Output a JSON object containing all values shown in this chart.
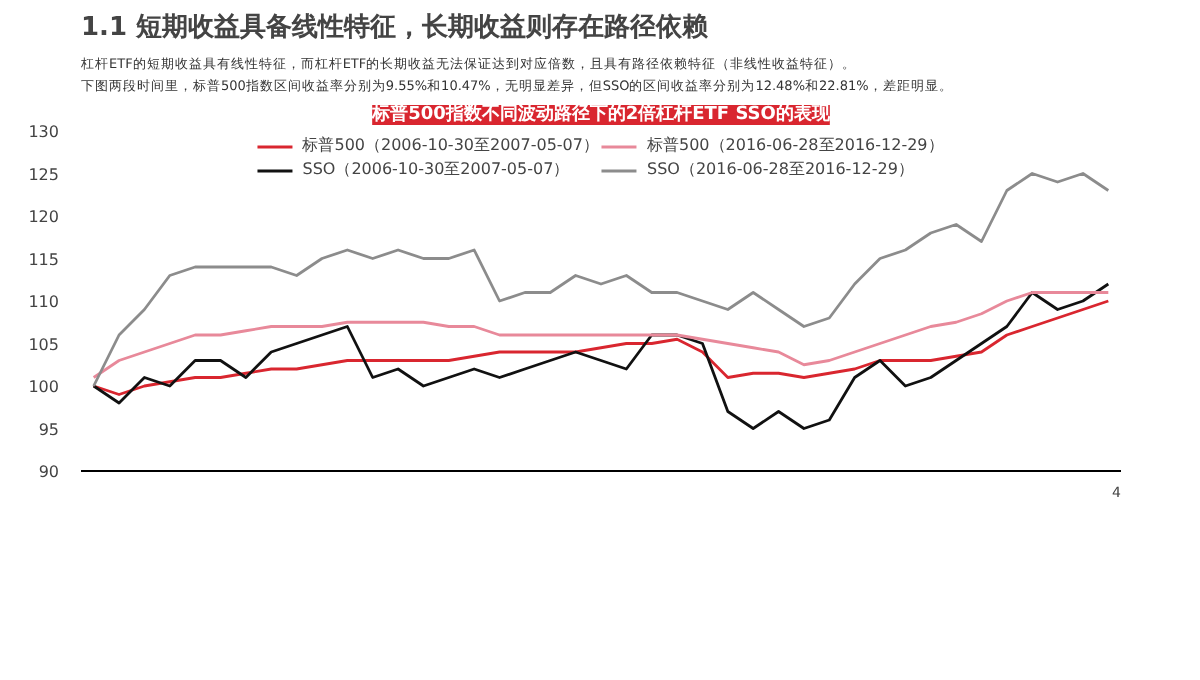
{
  "chart_data": {
    "type": "line",
    "title": "1.1 短期收益具备线性特征，长期收益则存在路径依赖",
    "subtitle": "标普500指数不同波动路径下的2倍杠杆ETF SSO的表现",
    "annotations": [
      "杠杆ETF的短期收益具有线性特征，而杠杆ETF的长期收益无法保证达到对应倍数，且具有路径依赖特征（非线性收益特征）。",
      "下图两段时间里，标普500指数区间收益率分别为9.55%和10.47%，无明显差异，但SSO的区间收益率分别为12.48%和22.81%，差距明显。",
      "4"
    ],
    "categories": [
      null,
      null,
      null,
      null,
      null,
      null,
      null,
      null,
      null,
      null,
      null,
      null,
      null,
      null,
      null,
      null,
      null,
      null,
      null,
      null,
      null,
      null,
      null,
      null,
      null,
      null,
      null,
      null,
      null,
      null,
      null,
      null,
      null,
      null,
      null,
      null,
      null,
      null,
      null,
      null,
      null
    ],
    "series": [
      {
        "name": "标普500（2006-10-30至2007-05-07）",
        "color": "#d9262f",
        "values": [
          100,
          99,
          100,
          100.5,
          101,
          101,
          101.5,
          102,
          102,
          102.5,
          103,
          103,
          103,
          103,
          103,
          103.5,
          104,
          104,
          104,
          104,
          104.5,
          105,
          105,
          105.5,
          104,
          101,
          101.5,
          101.5,
          101,
          101.5,
          102,
          103,
          103,
          103,
          103.5,
          104,
          106,
          107,
          108,
          109,
          110
        ]
      },
      {
        "name": "SSO（2006-10-30至2007-05-07）",
        "color": "#111111",
        "values": [
          100,
          98,
          101,
          100,
          103,
          103,
          101,
          104,
          105,
          106,
          107,
          101,
          102,
          100,
          101,
          102,
          101,
          102,
          103,
          104,
          103,
          102,
          106,
          106,
          105,
          97,
          95,
          97,
          95,
          96,
          101,
          103,
          100,
          101,
          103,
          105,
          107,
          111,
          109,
          110,
          112
        ]
      },
      {
        "name": "标普500（2016-06-28至2016-12-29）",
        "color": "#e8899a",
        "values": [
          101,
          103,
          104,
          105,
          106,
          106,
          106.5,
          107,
          107,
          107,
          107.5,
          107.5,
          107.5,
          107.5,
          107,
          107,
          106,
          106,
          106,
          106,
          106,
          106,
          106,
          106,
          105.5,
          105,
          104.5,
          104,
          102.5,
          103,
          104,
          105,
          106,
          107,
          107.5,
          108.5,
          110,
          111,
          111,
          111,
          111
        ]
      },
      {
        "name": "SSO（2016-06-28至2016-12-29）",
        "color": "#8c8c8c",
        "values": [
          100,
          106,
          109,
          113,
          114,
          114,
          114,
          114,
          113,
          115,
          116,
          115,
          116,
          115,
          115,
          116,
          110,
          111,
          111,
          113,
          112,
          113,
          111,
          111,
          110,
          109,
          111,
          109,
          107,
          108,
          112,
          115,
          116,
          118,
          119,
          117,
          123,
          125,
          124,
          125,
          123
        ]
      }
    ],
    "ylim": [
      90,
      130
    ],
    "yticks": [
      90,
      95,
      100,
      105,
      110,
      115,
      120,
      125,
      130
    ],
    "grid": false,
    "legend": "top",
    "marker": "none",
    "line_style": "solid"
  }
}
